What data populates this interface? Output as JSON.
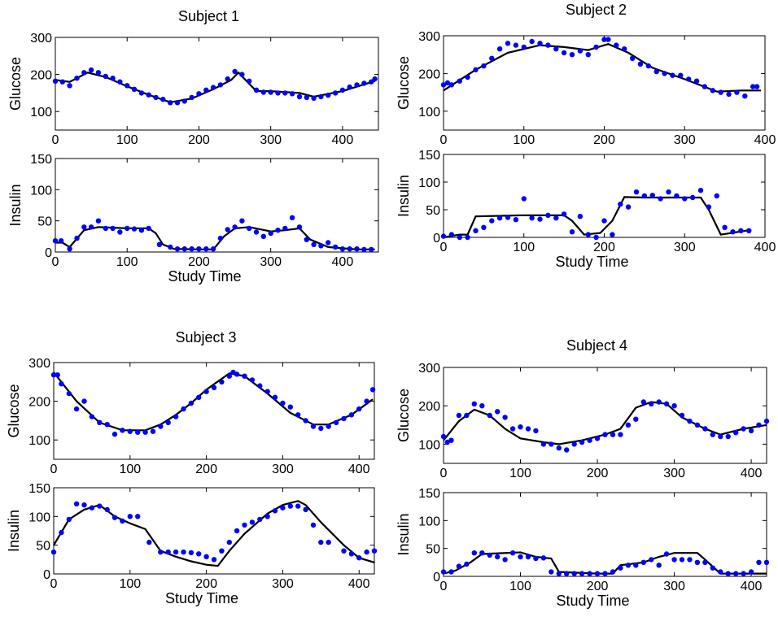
{
  "chart_data": [
    {
      "type": "scatter",
      "title": "Subject 1",
      "xlabel": "",
      "ylabel": "Glucose",
      "xlim": [
        0,
        450
      ],
      "ylim": [
        50,
        300
      ],
      "xticks": [
        "0",
        "100",
        "200",
        "300",
        "400"
      ],
      "yticks": [
        "100",
        "200",
        "300"
      ],
      "markers": {
        "x": [
          0,
          10,
          20,
          30,
          40,
          50,
          60,
          70,
          80,
          90,
          100,
          110,
          120,
          130,
          140,
          150,
          160,
          170,
          180,
          190,
          200,
          210,
          220,
          230,
          240,
          250,
          260,
          270,
          280,
          290,
          300,
          310,
          320,
          330,
          340,
          350,
          360,
          370,
          380,
          390,
          400,
          410,
          420,
          430,
          440,
          445
        ],
        "y": [
          182,
          180,
          170,
          190,
          205,
          212,
          205,
          195,
          190,
          180,
          170,
          160,
          150,
          145,
          138,
          133,
          124,
          124,
          128,
          138,
          148,
          158,
          165,
          172,
          188,
          208,
          200,
          182,
          158,
          152,
          152,
          150,
          150,
          148,
          140,
          138,
          136,
          140,
          144,
          150,
          158,
          166,
          172,
          176,
          180,
          188
        ]
      },
      "fit": {
        "x": [
          0,
          20,
          45,
          70,
          100,
          130,
          160,
          190,
          220,
          245,
          255,
          280,
          300,
          340,
          360,
          400,
          445
        ],
        "y": [
          185,
          180,
          205,
          193,
          168,
          145,
          125,
          135,
          160,
          185,
          205,
          155,
          155,
          150,
          140,
          155,
          182
        ]
      }
    },
    {
      "type": "scatter",
      "title": "",
      "xlabel": "Study Time",
      "ylabel": "Insulin",
      "xlim": [
        0,
        450
      ],
      "ylim": [
        0,
        150
      ],
      "xticks": [
        "0",
        "100",
        "200",
        "300",
        "400"
      ],
      "yticks": [
        "0",
        "50",
        "100",
        "150"
      ],
      "markers": {
        "x": [
          0,
          8,
          20,
          30,
          40,
          50,
          60,
          70,
          80,
          90,
          100,
          110,
          120,
          130,
          145,
          160,
          170,
          180,
          190,
          200,
          210,
          220,
          230,
          240,
          250,
          260,
          270,
          280,
          290,
          300,
          310,
          320,
          330,
          340,
          350,
          360,
          370,
          380,
          390,
          400,
          410,
          420,
          430,
          440
        ],
        "y": [
          18,
          18,
          5,
          22,
          40,
          40,
          50,
          38,
          38,
          32,
          38,
          37,
          35,
          38,
          12,
          8,
          5,
          5,
          5,
          5,
          5,
          5,
          22,
          36,
          40,
          50,
          38,
          32,
          25,
          30,
          35,
          38,
          55,
          40,
          20,
          12,
          10,
          15,
          8,
          5,
          5,
          5,
          4,
          4
        ]
      },
      "fit": {
        "x": [
          0,
          10,
          20,
          40,
          60,
          100,
          130,
          140,
          150,
          165,
          200,
          220,
          235,
          250,
          270,
          300,
          320,
          340,
          355,
          380,
          420,
          445
        ],
        "y": [
          15,
          15,
          8,
          35,
          40,
          38,
          38,
          30,
          12,
          5,
          4,
          4,
          25,
          38,
          40,
          33,
          35,
          38,
          20,
          8,
          4,
          4
        ]
      }
    },
    {
      "type": "scatter",
      "title": "Subject 2",
      "xlabel": "",
      "ylabel": "Glucose",
      "xlim": [
        0,
        400
      ],
      "ylim": [
        50,
        300
      ],
      "xticks": [
        "0",
        "100",
        "200",
        "300",
        "400"
      ],
      "yticks": [
        "100",
        "200",
        "300"
      ],
      "markers": {
        "x": [
          0,
          5,
          10,
          20,
          30,
          40,
          50,
          60,
          70,
          80,
          90,
          100,
          110,
          120,
          130,
          140,
          150,
          160,
          170,
          180,
          190,
          200,
          205,
          215,
          225,
          235,
          245,
          255,
          265,
          275,
          285,
          295,
          305,
          315,
          325,
          335,
          345,
          355,
          365,
          375,
          385,
          390
        ],
        "y": [
          170,
          175,
          170,
          180,
          190,
          210,
          220,
          240,
          265,
          280,
          275,
          270,
          285,
          280,
          275,
          265,
          255,
          250,
          260,
          250,
          270,
          290,
          290,
          275,
          265,
          240,
          225,
          220,
          205,
          200,
          195,
          195,
          185,
          180,
          165,
          155,
          150,
          145,
          150,
          140,
          165,
          165
        ]
      },
      "fit": {
        "x": [
          0,
          40,
          80,
          120,
          150,
          180,
          205,
          230,
          260,
          300,
          340,
          370,
          395
        ],
        "y": [
          155,
          210,
          255,
          275,
          270,
          262,
          278,
          255,
          215,
          185,
          152,
          155,
          155
        ]
      }
    },
    {
      "type": "scatter",
      "title": "",
      "xlabel": "Study Time",
      "ylabel": "Insulin",
      "xlim": [
        0,
        400
      ],
      "ylim": [
        0,
        150
      ],
      "xticks": [
        "0",
        "100",
        "200",
        "300",
        "400"
      ],
      "yticks": [
        "0",
        "50",
        "100",
        "150"
      ],
      "markers": {
        "x": [
          0,
          10,
          20,
          30,
          40,
          50,
          60,
          70,
          80,
          90,
          100,
          110,
          120,
          130,
          140,
          150,
          160,
          170,
          180,
          190,
          200,
          210,
          220,
          230,
          240,
          250,
          260,
          270,
          280,
          290,
          300,
          310,
          320,
          330,
          340,
          350,
          360,
          370,
          380
        ],
        "y": [
          2,
          5,
          0,
          0,
          12,
          18,
          30,
          35,
          36,
          32,
          70,
          35,
          33,
          40,
          35,
          42,
          10,
          38,
          5,
          0,
          30,
          5,
          60,
          55,
          82,
          75,
          76,
          70,
          82,
          75,
          70,
          72,
          85,
          55,
          75,
          18,
          10,
          12,
          12
        ]
      },
      "fit": {
        "x": [
          0,
          20,
          30,
          40,
          100,
          150,
          160,
          175,
          195,
          210,
          225,
          250,
          320,
          330,
          345,
          380
        ],
        "y": [
          0,
          5,
          5,
          38,
          40,
          40,
          30,
          5,
          8,
          30,
          73,
          72,
          72,
          50,
          5,
          13
        ]
      }
    },
    {
      "type": "scatter",
      "title": "Subject 3",
      "xlabel": "",
      "ylabel": "Glucose",
      "xlim": [
        0,
        420
      ],
      "ylim": [
        50,
        300
      ],
      "xticks": [
        "0",
        "100",
        "200",
        "300",
        "400"
      ],
      "yticks": [
        "100",
        "200",
        "300"
      ],
      "markers": {
        "x": [
          0,
          5,
          10,
          20,
          30,
          40,
          50,
          60,
          70,
          80,
          90,
          100,
          110,
          120,
          130,
          140,
          150,
          160,
          170,
          180,
          190,
          200,
          210,
          220,
          230,
          235,
          240,
          250,
          260,
          270,
          280,
          290,
          300,
          310,
          320,
          330,
          340,
          350,
          360,
          370,
          380,
          390,
          400,
          410,
          418
        ],
        "y": [
          268,
          268,
          245,
          220,
          180,
          200,
          160,
          145,
          140,
          115,
          125,
          122,
          120,
          120,
          122,
          135,
          145,
          160,
          180,
          195,
          210,
          225,
          235,
          250,
          265,
          275,
          270,
          265,
          255,
          240,
          225,
          210,
          195,
          185,
          165,
          150,
          135,
          130,
          135,
          145,
          155,
          165,
          180,
          200,
          230
        ]
      },
      "fit": {
        "x": [
          0,
          30,
          60,
          90,
          120,
          140,
          160,
          180,
          200,
          230,
          250,
          280,
          310,
          340,
          360,
          390,
          418
        ],
        "y": [
          275,
          200,
          145,
          125,
          125,
          140,
          165,
          195,
          230,
          272,
          265,
          220,
          170,
          140,
          140,
          165,
          205
        ]
      }
    },
    {
      "type": "scatter",
      "title": "",
      "xlabel": "Study Time",
      "ylabel": "Insulin",
      "xlim": [
        0,
        420
      ],
      "ylim": [
        0,
        150
      ],
      "xticks": [
        "0",
        "100",
        "200",
        "300",
        "400"
      ],
      "yticks": [
        "0",
        "50",
        "100",
        "150"
      ],
      "markers": {
        "x": [
          0,
          10,
          20,
          30,
          40,
          50,
          60,
          70,
          80,
          90,
          100,
          110,
          125,
          140,
          150,
          160,
          170,
          180,
          190,
          200,
          210,
          220,
          230,
          240,
          250,
          260,
          270,
          280,
          290,
          300,
          310,
          320,
          330,
          340,
          350,
          360,
          380,
          390,
          400,
          410,
          420
        ],
        "y": [
          38,
          72,
          95,
          122,
          120,
          115,
          118,
          112,
          98,
          92,
          100,
          100,
          55,
          38,
          38,
          38,
          38,
          37,
          35,
          30,
          25,
          40,
          55,
          75,
          85,
          90,
          95,
          100,
          110,
          115,
          118,
          118,
          112,
          85,
          55,
          55,
          40,
          35,
          28,
          38,
          40
        ]
      },
      "fit": {
        "x": [
          0,
          20,
          40,
          60,
          80,
          100,
          120,
          140,
          160,
          180,
          200,
          215,
          230,
          250,
          280,
          300,
          320,
          330,
          350,
          380,
          400,
          420
        ],
        "y": [
          50,
          95,
          112,
          120,
          100,
          88,
          78,
          40,
          30,
          22,
          16,
          14,
          40,
          70,
          105,
          120,
          127,
          120,
          90,
          50,
          28,
          20
        ]
      }
    },
    {
      "type": "scatter",
      "title": "Subject 4",
      "xlabel": "",
      "ylabel": "Glucose",
      "xlim": [
        0,
        420
      ],
      "ylim": [
        50,
        300
      ],
      "xticks": [
        "0",
        "100",
        "200",
        "300",
        "400"
      ],
      "yticks": [
        "100",
        "200",
        "300"
      ],
      "markers": {
        "x": [
          0,
          5,
          10,
          20,
          30,
          40,
          50,
          60,
          70,
          80,
          90,
          100,
          110,
          120,
          130,
          140,
          150,
          160,
          170,
          180,
          190,
          200,
          210,
          220,
          230,
          240,
          250,
          260,
          270,
          280,
          290,
          300,
          310,
          320,
          330,
          340,
          350,
          360,
          370,
          380,
          390,
          400,
          410,
          420
        ],
        "y": [
          120,
          105,
          110,
          175,
          175,
          205,
          200,
          175,
          185,
          170,
          140,
          145,
          140,
          135,
          100,
          100,
          90,
          85,
          100,
          105,
          110,
          115,
          125,
          125,
          125,
          150,
          165,
          210,
          205,
          210,
          205,
          200,
          175,
          160,
          150,
          140,
          125,
          120,
          120,
          130,
          140,
          135,
          150,
          160
        ]
      },
      "fit": {
        "x": [
          0,
          20,
          40,
          60,
          80,
          100,
          130,
          150,
          180,
          210,
          230,
          250,
          270,
          290,
          310,
          340,
          360,
          390,
          420
        ],
        "y": [
          110,
          160,
          190,
          175,
          140,
          115,
          105,
          100,
          110,
          125,
          140,
          195,
          210,
          205,
          170,
          140,
          125,
          140,
          150
        ]
      }
    },
    {
      "type": "scatter",
      "title": "",
      "xlabel": "Study Time",
      "ylabel": "Insulin",
      "xlim": [
        0,
        420
      ],
      "ylim": [
        0,
        150
      ],
      "xticks": [
        "0",
        "100",
        "200",
        "300",
        "400"
      ],
      "yticks": [
        "0",
        "50",
        "100",
        "150"
      ],
      "markers": {
        "x": [
          0,
          10,
          20,
          30,
          40,
          50,
          60,
          70,
          80,
          90,
          100,
          110,
          120,
          130,
          140,
          150,
          160,
          170,
          180,
          190,
          200,
          210,
          220,
          230,
          240,
          250,
          260,
          270,
          280,
          290,
          300,
          310,
          320,
          330,
          340,
          350,
          360,
          370,
          380,
          390,
          400,
          410,
          420
        ],
        "y": [
          8,
          8,
          18,
          22,
          42,
          42,
          38,
          35,
          30,
          42,
          35,
          35,
          32,
          33,
          8,
          5,
          5,
          5,
          5,
          5,
          5,
          5,
          8,
          15,
          20,
          20,
          25,
          30,
          20,
          40,
          30,
          30,
          30,
          25,
          25,
          15,
          8,
          5,
          5,
          5,
          8,
          25,
          25
        ]
      },
      "fit": {
        "x": [
          0,
          15,
          35,
          50,
          100,
          120,
          140,
          150,
          200,
          220,
          230,
          260,
          280,
          300,
          330,
          340,
          360,
          420
        ],
        "y": [
          5,
          10,
          25,
          40,
          43,
          35,
          32,
          8,
          5,
          5,
          20,
          25,
          35,
          42,
          42,
          30,
          5,
          5
        ]
      }
    }
  ],
  "style": {
    "marker_color": "#0000ff",
    "line_color": "#000000"
  }
}
